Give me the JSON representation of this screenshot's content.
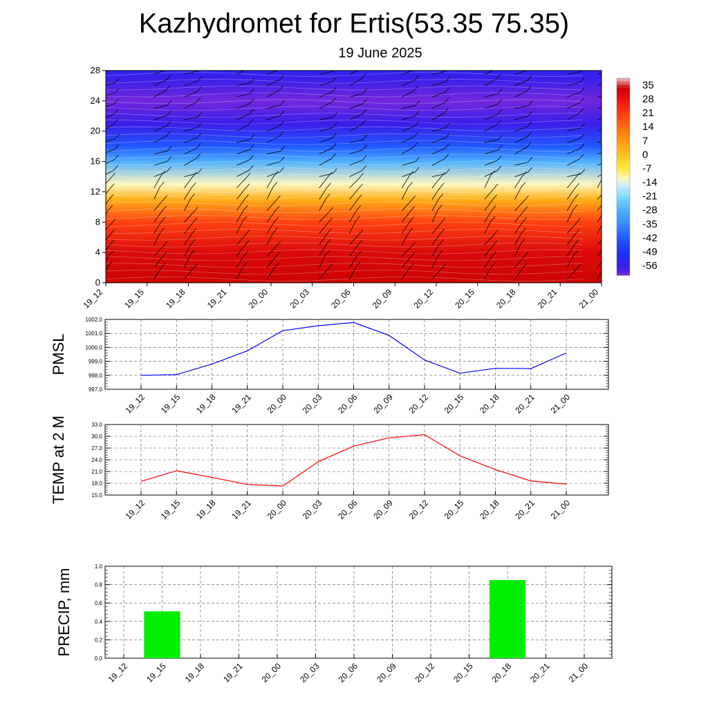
{
  "title": "Kazhydromet for Ertis(53.35 75.35)",
  "subtitle": "19 June 2025",
  "time_labels": [
    "19_12",
    "19_15",
    "19_18",
    "19_21",
    "20_00",
    "20_03",
    "20_06",
    "20_09",
    "20_12",
    "20_15",
    "20_18",
    "20_21",
    "21_00"
  ],
  "chart_data": [
    {
      "type": "heatmap",
      "title": "",
      "xlabel": "",
      "ylabel": "",
      "x": [
        "19_12",
        "19_15",
        "19_18",
        "19_21",
        "20_00",
        "20_03",
        "20_06",
        "20_09",
        "20_12",
        "20_15",
        "20_18",
        "20_21",
        "21_00"
      ],
      "y_ticks": [
        0,
        4,
        8,
        12,
        16,
        20,
        24,
        28
      ],
      "ylim": [
        0,
        28
      ],
      "colorbar_labels": [
        35,
        28,
        21,
        14,
        7,
        0,
        -7,
        -14,
        -21,
        -28,
        -35,
        -42,
        -49,
        -56
      ],
      "colorbar_range": [
        -60,
        38
      ],
      "temperature_profile": [
        {
          "level": 0,
          "value": 32
        },
        {
          "level": 4,
          "value": 30
        },
        {
          "level": 8,
          "value": 20
        },
        {
          "level": 11,
          "value": 3
        },
        {
          "level": 13,
          "value": -12
        },
        {
          "level": 16,
          "value": -28
        },
        {
          "level": 18,
          "value": -42
        },
        {
          "level": 21,
          "value": -56
        },
        {
          "level": 24,
          "value": -60
        },
        {
          "level": 27,
          "value": -55
        },
        {
          "level": 28,
          "value": -53
        }
      ],
      "overlay": "wind barbs"
    },
    {
      "type": "line",
      "ylabel": "PMSL",
      "x": [
        "19_12",
        "19_15",
        "19_18",
        "19_21",
        "20_00",
        "20_03",
        "20_06",
        "20_09",
        "20_12",
        "20_15",
        "20_18",
        "20_21",
        "21_00"
      ],
      "series": [
        {
          "values": [
            998.0,
            998.05,
            998.8,
            999.75,
            1001.2,
            1001.55,
            1001.78,
            1000.85,
            999.1,
            998.15,
            998.5,
            998.48,
            999.6
          ]
        }
      ],
      "ylim": [
        997.0,
        1002.0
      ],
      "yticks": [
        "997.0",
        "998.0",
        "999.0",
        "1000.0",
        "1001.0",
        "1002.0"
      ],
      "color": "#0000ff",
      "grid": true
    },
    {
      "type": "line",
      "ylabel": "TEMP at 2 M",
      "x": [
        "19_12",
        "19_15",
        "19_18",
        "19_21",
        "20_00",
        "20_03",
        "20_06",
        "20_09",
        "20_12",
        "20_15",
        "20_18",
        "20_21",
        "21_00"
      ],
      "series": [
        {
          "values": [
            18.5,
            21.2,
            19.5,
            17.7,
            17.3,
            23.5,
            27.5,
            29.6,
            30.4,
            25.0,
            21.5,
            18.6,
            17.8
          ]
        }
      ],
      "ylim": [
        15.0,
        33.0
      ],
      "yticks": [
        "15.0",
        "18.0",
        "21.0",
        "24.0",
        "27.0",
        "30.0",
        "33.0"
      ],
      "color": "#ff0000",
      "grid": true
    },
    {
      "type": "bar",
      "ylabel": "PRECIP, mm",
      "categories": [
        "19_12",
        "19_15",
        "19_18",
        "19_21",
        "20_00",
        "20_03",
        "20_06",
        "20_09",
        "20_12",
        "20_15",
        "20_18",
        "20_21",
        "21_00"
      ],
      "values": [
        0,
        0.51,
        0,
        0,
        0,
        0,
        0,
        0,
        0,
        0,
        0.85,
        0,
        0
      ],
      "ylim": [
        0.0,
        1.0
      ],
      "yticks": [
        "0.0",
        "0.2",
        "0.4",
        "0.6",
        "0.8",
        "1.0"
      ],
      "color": "#00ee00",
      "grid": true
    }
  ]
}
